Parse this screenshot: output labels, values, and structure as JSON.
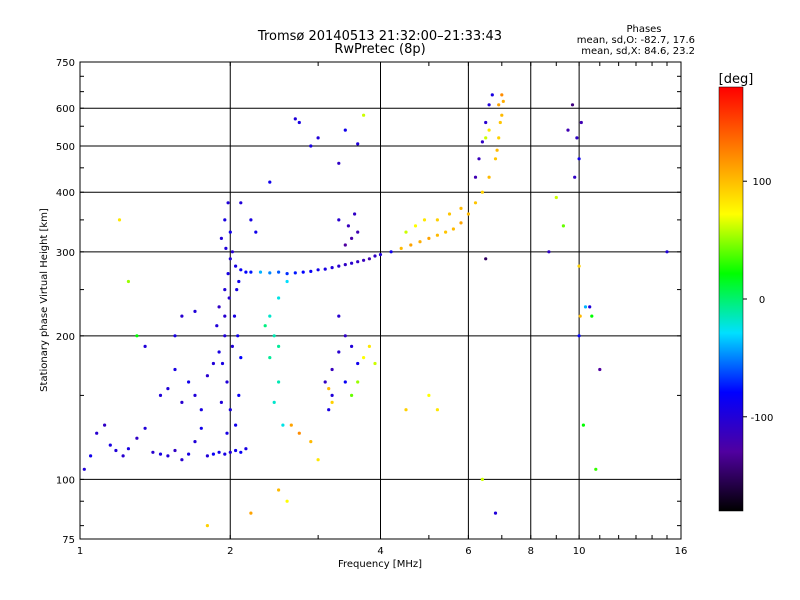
{
  "chart_data": {
    "type": "scatter",
    "title_line1": "Tromsø 20140513 21:32:00–21:33:43",
    "title_line2": "RwPretec (8p)",
    "stats_title": "Phases",
    "stats_o": "mean, sd,O:  -82.7, 17.6",
    "stats_x": "mean, sd,X:  84.6, 23.2",
    "xlabel": "Frequency [MHz]",
    "ylabel": "Stationary phase Virtual Height [km]",
    "x_scale": "log",
    "y_scale": "log",
    "xlim": [
      1,
      16
    ],
    "ylim": [
      75,
      750
    ],
    "x_ticks": [
      {
        "v": 1,
        "label": "1"
      },
      {
        "v": 2,
        "label": "2"
      },
      {
        "v": 4,
        "label": "4"
      },
      {
        "v": 6,
        "label": "6"
      },
      {
        "v": 8,
        "label": "8"
      },
      {
        "v": 10,
        "label": "10"
      },
      {
        "v": 16,
        "label": "16"
      }
    ],
    "x_grid": [
      2,
      4,
      6,
      8,
      10
    ],
    "y_ticks": [
      {
        "v": 75,
        "label": "75"
      },
      {
        "v": 100,
        "label": "100"
      },
      {
        "v": 200,
        "label": "200"
      },
      {
        "v": 300,
        "label": "300"
      },
      {
        "v": 400,
        "label": "400"
      },
      {
        "v": 500,
        "label": "500"
      },
      {
        "v": 600,
        "label": "600"
      },
      {
        "v": 750,
        "label": "750"
      }
    ],
    "y_grid": [
      100,
      200,
      300,
      400,
      500,
      600
    ],
    "colorbar": {
      "label": "[deg]",
      "range": [
        -180,
        180
      ],
      "ticks": [
        {
          "v": 100,
          "label": "100"
        },
        {
          "v": 0,
          "label": "0"
        },
        {
          "v": -100,
          "label": "-100"
        }
      ]
    },
    "series": [
      {
        "values": [
          [
            1.02,
            105,
            -100
          ],
          [
            1.05,
            112,
            -90
          ],
          [
            1.08,
            125,
            -105
          ],
          [
            1.12,
            130,
            -110
          ],
          [
            1.15,
            118,
            -95
          ],
          [
            1.18,
            115,
            -100
          ],
          [
            1.22,
            112,
            -105
          ],
          [
            1.25,
            116,
            -95
          ],
          [
            1.3,
            122,
            -110
          ],
          [
            1.35,
            128,
            -100
          ],
          [
            1.4,
            114,
            -105
          ],
          [
            1.45,
            113,
            -95
          ],
          [
            1.5,
            112,
            -100
          ],
          [
            1.55,
            115,
            -110
          ],
          [
            1.6,
            110,
            -105
          ],
          [
            1.65,
            113,
            -95
          ],
          [
            1.7,
            120,
            -100
          ],
          [
            1.75,
            128,
            -90
          ],
          [
            1.8,
            112,
            -100
          ],
          [
            1.85,
            113,
            -85
          ],
          [
            1.9,
            114,
            -90
          ],
          [
            1.95,
            113,
            -95
          ],
          [
            2.0,
            114,
            -100
          ],
          [
            2.05,
            115,
            -90
          ],
          [
            2.1,
            114,
            -85
          ],
          [
            2.15,
            116,
            -95
          ],
          [
            1.5,
            155,
            -100
          ],
          [
            1.55,
            170,
            -95
          ],
          [
            1.6,
            145,
            -105
          ],
          [
            1.65,
            160,
            -90
          ],
          [
            1.7,
            150,
            -100
          ],
          [
            1.75,
            140,
            -95
          ],
          [
            1.8,
            165,
            -105
          ],
          [
            1.85,
            175,
            -100
          ],
          [
            1.9,
            185,
            -95
          ],
          [
            1.95,
            200,
            -100
          ],
          [
            1.95,
            220,
            -105
          ],
          [
            1.95,
            250,
            -100
          ],
          [
            1.98,
            270,
            -95
          ],
          [
            2.0,
            290,
            -100
          ],
          [
            2.02,
            300,
            -105
          ],
          [
            2.05,
            280,
            -95
          ],
          [
            2.08,
            260,
            -90
          ],
          [
            2.1,
            275,
            -85
          ],
          [
            2.15,
            272,
            -80
          ],
          [
            2.2,
            272,
            -75
          ],
          [
            1.92,
            320,
            -100
          ],
          [
            1.95,
            350,
            -95
          ],
          [
            1.98,
            380,
            -100
          ],
          [
            1.9,
            230,
            -110
          ],
          [
            1.88,
            210,
            -100
          ],
          [
            1.93,
            175,
            -95
          ],
          [
            1.97,
            160,
            -100
          ],
          [
            2.0,
            140,
            -95
          ],
          [
            2.05,
            130,
            -90
          ],
          [
            2.08,
            150,
            -85
          ],
          [
            2.0,
            330,
            -90
          ],
          [
            1.96,
            305,
            -100
          ],
          [
            1.99,
            240,
            -105
          ],
          [
            2.04,
            220,
            -95
          ],
          [
            2.07,
            200,
            -90
          ],
          [
            2.1,
            180,
            -80
          ],
          [
            1.92,
            145,
            -100
          ],
          [
            1.97,
            125,
            -95
          ],
          [
            2.02,
            190,
            -100
          ],
          [
            2.06,
            250,
            -95
          ],
          [
            2.3,
            272,
            -40
          ],
          [
            2.4,
            271,
            -50
          ],
          [
            2.5,
            272,
            -60
          ],
          [
            2.6,
            270,
            -70
          ],
          [
            2.7,
            271,
            -75
          ],
          [
            2.8,
            272,
            -80
          ],
          [
            2.9,
            273,
            -85
          ],
          [
            3.0,
            275,
            -90
          ],
          [
            3.1,
            276,
            -95
          ],
          [
            3.2,
            278,
            -100
          ],
          [
            3.3,
            280,
            -105
          ],
          [
            3.4,
            282,
            -110
          ],
          [
            3.5,
            284,
            -105
          ],
          [
            3.6,
            286,
            -110
          ],
          [
            3.7,
            288,
            -115
          ],
          [
            3.8,
            290,
            -120
          ],
          [
            3.9,
            294,
            -110
          ],
          [
            4.0,
            296,
            -100
          ],
          [
            4.2,
            300,
            -90
          ],
          [
            4.4,
            305,
            100
          ],
          [
            4.6,
            310,
            110
          ],
          [
            4.8,
            315,
            105
          ],
          [
            5.0,
            320,
            110
          ],
          [
            5.2,
            325,
            100
          ],
          [
            5.4,
            330,
            95
          ],
          [
            5.6,
            335,
            100
          ],
          [
            5.8,
            345,
            110
          ],
          [
            6.0,
            360,
            100
          ],
          [
            6.2,
            380,
            95
          ],
          [
            6.4,
            400,
            90
          ],
          [
            6.6,
            430,
            100
          ],
          [
            6.8,
            470,
            95
          ],
          [
            6.9,
            520,
            90
          ],
          [
            7.0,
            580,
            100
          ],
          [
            7.05,
            620,
            105
          ],
          [
            6.95,
            560,
            95
          ],
          [
            6.85,
            490,
            100
          ],
          [
            6.2,
            430,
            -120
          ],
          [
            6.3,
            470,
            -115
          ],
          [
            6.4,
            510,
            -110
          ],
          [
            6.5,
            560,
            -105
          ],
          [
            6.6,
            610,
            -100
          ],
          [
            6.7,
            640,
            -95
          ],
          [
            2.4,
            220,
            -20
          ],
          [
            2.45,
            200,
            -15
          ],
          [
            2.5,
            240,
            -25
          ],
          [
            2.4,
            180,
            -10
          ],
          [
            2.5,
            160,
            -15
          ],
          [
            2.45,
            145,
            -20
          ],
          [
            2.55,
            130,
            -25
          ],
          [
            2.6,
            260,
            -30
          ],
          [
            2.35,
            210,
            -5
          ],
          [
            2.5,
            190,
            -10
          ],
          [
            3.1,
            160,
            -110
          ],
          [
            3.2,
            170,
            -115
          ],
          [
            3.3,
            185,
            -105
          ],
          [
            3.4,
            200,
            -110
          ],
          [
            3.2,
            150,
            -100
          ],
          [
            3.15,
            140,
            -95
          ],
          [
            3.3,
            220,
            -105
          ],
          [
            3.5,
            190,
            -100
          ],
          [
            3.6,
            175,
            -90
          ],
          [
            3.4,
            160,
            -85
          ],
          [
            3.7,
            180,
            70
          ],
          [
            3.8,
            190,
            80
          ],
          [
            3.9,
            175,
            60
          ],
          [
            3.6,
            160,
            50
          ],
          [
            3.5,
            150,
            40
          ],
          [
            3.2,
            145,
            90
          ],
          [
            3.15,
            155,
            100
          ],
          [
            3.4,
            310,
            -130
          ],
          [
            3.5,
            320,
            -125
          ],
          [
            3.6,
            330,
            -120
          ],
          [
            3.45,
            340,
            -115
          ],
          [
            3.55,
            360,
            -110
          ],
          [
            3.3,
            350,
            -105
          ],
          [
            4.5,
            330,
            60
          ],
          [
            4.7,
            340,
            70
          ],
          [
            4.9,
            350,
            80
          ],
          [
            5.2,
            350,
            90
          ],
          [
            5.5,
            360,
            95
          ],
          [
            5.8,
            370,
            100
          ],
          [
            6.5,
            520,
            60
          ],
          [
            6.6,
            540,
            80
          ],
          [
            6.9,
            610,
            110
          ],
          [
            7.0,
            640,
            120
          ],
          [
            9.7,
            610,
            -140
          ],
          [
            9.9,
            520,
            -110
          ],
          [
            10.0,
            470,
            -90
          ],
          [
            10.1,
            560,
            -120
          ],
          [
            10.0,
            200,
            -80
          ],
          [
            10.05,
            220,
            100
          ],
          [
            10.5,
            230,
            -100
          ],
          [
            10.6,
            220,
            20
          ],
          [
            11.0,
            170,
            -130
          ],
          [
            10.2,
            130,
            20
          ],
          [
            10.8,
            105,
            30
          ],
          [
            10.0,
            280,
            90
          ],
          [
            9.5,
            540,
            -120
          ],
          [
            9.8,
            430,
            -110
          ],
          [
            10.3,
            230,
            -40
          ],
          [
            2.7,
            570,
            -100
          ],
          [
            2.75,
            560,
            -95
          ],
          [
            3.0,
            520,
            -100
          ],
          [
            3.4,
            540,
            -90
          ],
          [
            3.6,
            505,
            -100
          ],
          [
            3.7,
            580,
            60
          ],
          [
            3.3,
            460,
            -110
          ],
          [
            2.9,
            500,
            -95
          ],
          [
            2.4,
            420,
            -90
          ],
          [
            2.1,
            380,
            -100
          ],
          [
            2.2,
            350,
            -95
          ],
          [
            2.25,
            330,
            -90
          ],
          [
            1.2,
            350,
            80
          ],
          [
            1.25,
            260,
            50
          ],
          [
            1.3,
            200,
            20
          ],
          [
            1.35,
            190,
            -100
          ],
          [
            1.45,
            150,
            -100
          ],
          [
            1.55,
            200,
            -95
          ],
          [
            1.6,
            220,
            -105
          ],
          [
            1.7,
            225,
            -100
          ],
          [
            2.65,
            130,
            110
          ],
          [
            2.75,
            125,
            120
          ],
          [
            2.9,
            120,
            100
          ],
          [
            3.0,
            110,
            80
          ],
          [
            2.5,
            95,
            100
          ],
          [
            2.6,
            90,
            70
          ],
          [
            2.2,
            85,
            110
          ],
          [
            1.8,
            80,
            90
          ],
          [
            5.0,
            150,
            70
          ],
          [
            5.2,
            140,
            80
          ],
          [
            4.5,
            140,
            90
          ],
          [
            6.4,
            100,
            60
          ],
          [
            6.8,
            85,
            -100
          ],
          [
            6.5,
            290,
            -150
          ],
          [
            8.7,
            300,
            -110
          ],
          [
            9.0,
            390,
            60
          ],
          [
            9.3,
            340,
            40
          ],
          [
            15.0,
            300,
            -100
          ]
        ]
      }
    ]
  }
}
